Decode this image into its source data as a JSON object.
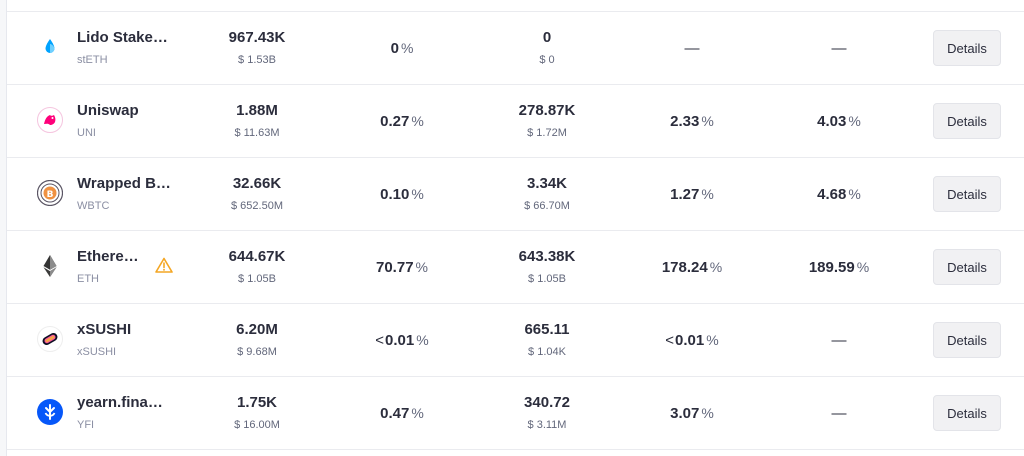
{
  "details_label": "Details",
  "rows": [
    {
      "name": "Lido Stake…",
      "symbol": "stETH",
      "icon": "steth-drop-icon",
      "liquidity": "967.43K",
      "liquidity_usd": "$ 1.53B",
      "share": "0",
      "share_lt": "",
      "borrowed": "0",
      "borrowed_usd": "$ 0",
      "apy1": "—",
      "apy1_lt": "",
      "apy2": "—"
    },
    {
      "name": "Uniswap",
      "symbol": "UNI",
      "icon": "uniswap-unicorn-icon",
      "liquidity": "1.88M",
      "liquidity_usd": "$ 11.63M",
      "share": "0.27",
      "share_lt": "",
      "borrowed": "278.87K",
      "borrowed_usd": "$ 1.72M",
      "apy1": "2.33",
      "apy1_lt": "",
      "apy2": "4.03"
    },
    {
      "name": "Wrapped B…",
      "symbol": "WBTC",
      "icon": "wbtc-icon",
      "liquidity": "32.66K",
      "liquidity_usd": "$ 652.50M",
      "share": "0.10",
      "share_lt": "",
      "borrowed": "3.34K",
      "borrowed_usd": "$ 66.70M",
      "apy1": "1.27",
      "apy1_lt": "",
      "apy2": "4.68"
    },
    {
      "name": "Ethere…",
      "symbol": "ETH",
      "icon": "ethereum-icon",
      "warning": true,
      "liquidity": "644.67K",
      "liquidity_usd": "$ 1.05B",
      "share": "70.77",
      "share_lt": "",
      "borrowed": "643.38K",
      "borrowed_usd": "$ 1.05B",
      "apy1": "178.24",
      "apy1_lt": "",
      "apy2": "189.59"
    },
    {
      "name": "xSUSHI",
      "symbol": "xSUSHI",
      "icon": "xsushi-icon",
      "liquidity": "6.20M",
      "liquidity_usd": "$ 9.68M",
      "share": "0.01",
      "share_lt": "<",
      "borrowed": "665.11",
      "borrowed_usd": "$ 1.04K",
      "apy1": "0.01",
      "apy1_lt": "<",
      "apy2": "—"
    },
    {
      "name": "yearn.fina…",
      "symbol": "YFI",
      "icon": "yearn-icon",
      "liquidity": "1.75K",
      "liquidity_usd": "$ 16.00M",
      "share": "0.47",
      "share_lt": "",
      "borrowed": "340.72",
      "borrowed_usd": "$ 3.11M",
      "apy1": "3.07",
      "apy1_lt": "",
      "apy2": "—"
    }
  ],
  "percent_sign": "%"
}
